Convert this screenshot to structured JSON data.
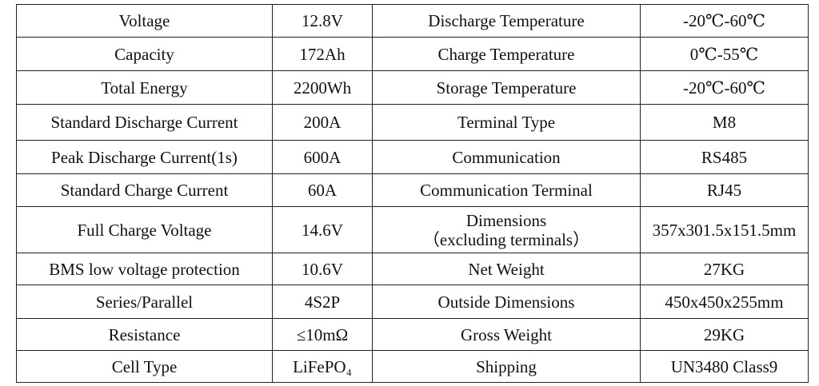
{
  "table": {
    "rows": [
      [
        "Voltage",
        "12.8V",
        "Discharge Temperature",
        "-20℃-60℃"
      ],
      [
        "Capacity",
        "172Ah",
        "Charge Temperature",
        "0℃-55℃"
      ],
      [
        "Total Energy",
        "2200Wh",
        "Storage Temperature",
        "-20℃-60℃"
      ],
      [
        "Standard Discharge Current",
        "200A",
        "Terminal Type",
        "M8"
      ],
      [
        "Peak Discharge Current(1s)",
        "600A",
        "Communication",
        "RS485"
      ],
      [
        "Standard Charge Current",
        "60A",
        "Communication Terminal",
        "RJ45"
      ],
      [
        "Full Charge Voltage",
        "14.6V",
        "Dimensions\n（excluding terminals）",
        "357x301.5x151.5mm"
      ],
      [
        "BMS low voltage protection",
        "10.6V",
        "Net Weight",
        "27KG"
      ],
      [
        "Series/Parallel",
        "4S2P",
        "Outside Dimensions",
        "450x450x255mm"
      ],
      [
        "Resistance",
        "≤10mΩ",
        "Gross Weight",
        "29KG"
      ],
      [
        "Cell Type",
        "LiFePO₄",
        "Shipping",
        "UN3480 Class9"
      ]
    ]
  }
}
